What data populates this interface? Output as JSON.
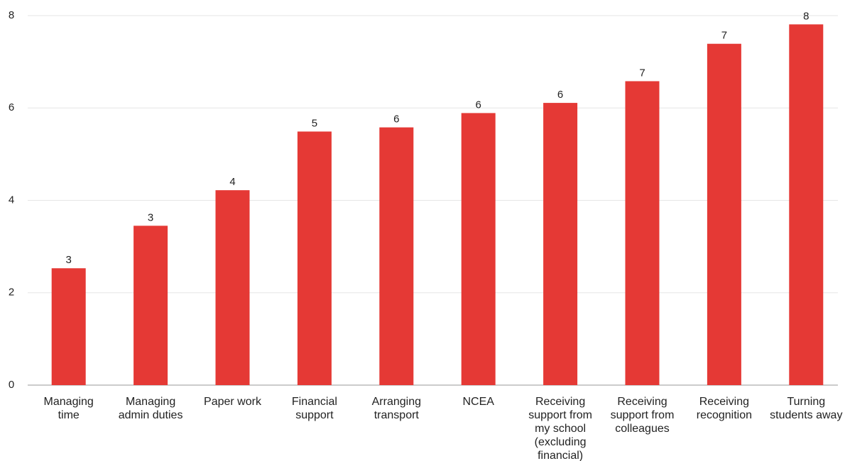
{
  "chart_data": {
    "type": "bar",
    "categories": [
      "Managing time",
      "Managing admin duties",
      "Paper work",
      "Financial support",
      "Arranging transport",
      "NCEA",
      "Receiving support from my school (excluding financial)",
      "Receiving support from colleagues",
      "Receiving recognition",
      "Turning students away"
    ],
    "values": [
      2.53,
      3.45,
      4.22,
      5.49,
      5.58,
      5.89,
      6.11,
      6.58,
      7.39,
      7.81
    ],
    "value_labels": [
      "3",
      "3",
      "4",
      "5",
      "6",
      "6",
      "6",
      "7",
      "7",
      "8"
    ],
    "color": "#e53935",
    "ylim": [
      0,
      8
    ],
    "yticks": [
      0,
      2,
      4,
      6,
      8
    ],
    "grid": true
  }
}
